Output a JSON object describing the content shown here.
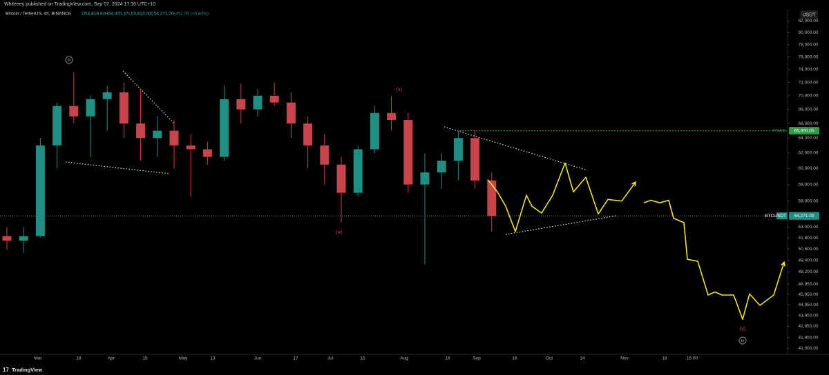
{
  "publisher_line": "Whiteeey published on TradingView.com, Sep 07, 2024 17:16 UTC+10",
  "footer_brand": "TradingView",
  "chart_data": {
    "type": "candlestick",
    "symbol": "Bitcoin / TetherUS, 4h, BINANCE",
    "ohlc_readout": [
      "O53,818.92",
      "H54,405.37",
      "L53,814.00",
      "C54,271.00",
      "+452.09 (+0.84%)"
    ],
    "currency": "USDT",
    "log_scale": true,
    "grid": false,
    "up_color": "#1f8f84",
    "down_color": "#c8434a",
    "open": [
      52000,
      51500,
      52000,
      63000,
      68500,
      67000,
      69500,
      70500,
      66000,
      64000,
      65000,
      63000,
      62500,
      61500,
      69500,
      68000,
      70000,
      69000,
      66000,
      63000,
      60500,
      57000,
      62500,
      67500,
      66500,
      58000,
      59500,
      61000,
      64000,
      58500
    ],
    "high": [
      53000,
      53000,
      64000,
      69000,
      73600,
      70000,
      71500,
      72000,
      71000,
      67000,
      66500,
      64500,
      63500,
      71500,
      71800,
      71000,
      72000,
      70500,
      67000,
      64500,
      61500,
      63000,
      68500,
      70000,
      67500,
      62000,
      62000,
      65000,
      65000,
      59500
    ],
    "low": [
      50500,
      50200,
      51800,
      60000,
      66000,
      61500,
      65000,
      64000,
      61000,
      61500,
      60000,
      56500,
      60500,
      61000,
      66000,
      67000,
      68500,
      64000,
      60000,
      58000,
      53500,
      56500,
      62000,
      65000,
      57000,
      49000,
      57500,
      58500,
      57500,
      52500
    ],
    "close": [
      51500,
      52000,
      63000,
      68500,
      67000,
      69500,
      70500,
      66000,
      64000,
      65000,
      63000,
      62500,
      61500,
      69500,
      68000,
      70000,
      69000,
      66000,
      63000,
      60500,
      57000,
      62500,
      67500,
      66500,
      58000,
      59500,
      61000,
      64000,
      58500,
      54271
    ],
    "projection": {
      "color": "#f2e33c",
      "values": [
        58600,
        57100,
        55400,
        52500,
        56700,
        55400,
        54600,
        56700,
        60700,
        57100,
        58900,
        54500,
        56200,
        56000,
        58300,
        null,
        55800,
        56100,
        55800,
        56100,
        54000,
        53500,
        49500,
        49300,
        45900,
        46200,
        45900,
        45900,
        45900,
        43600,
        46000,
        44900,
        45900,
        49200
      ]
    },
    "ylim": [
      40600,
      84000
    ],
    "yticks": [
      {
        "value": 82000,
        "label": "82,000.00"
      },
      {
        "value": 80000,
        "label": "80,000.00"
      },
      {
        "value": 78000,
        "label": "78,000.00"
      },
      {
        "value": 76000,
        "label": "76,000.00"
      },
      {
        "value": 74000,
        "label": "74,000.00"
      },
      {
        "value": 72000,
        "label": "72,000.00"
      },
      {
        "value": 70000,
        "label": "70,000.00"
      },
      {
        "value": 68000,
        "label": "68,000.00"
      },
      {
        "value": 66000,
        "label": "66,000.00"
      },
      {
        "value": 64000,
        "label": "64,000.00"
      },
      {
        "value": 62000,
        "label": "62,000.00"
      },
      {
        "value": 60000,
        "label": "60,000.00"
      },
      {
        "value": 58000,
        "label": "58,000.00"
      },
      {
        "value": 56000,
        "label": "56,000.00"
      },
      {
        "value": 53000,
        "label": "53,000.00"
      },
      {
        "value": 51800,
        "label": "51,800.00"
      },
      {
        "value": 50600,
        "label": "50,600.00"
      },
      {
        "value": 49400,
        "label": "49,400.00"
      },
      {
        "value": 48200,
        "label": "48,200.00"
      },
      {
        "value": 46950,
        "label": "46,950.00"
      },
      {
        "value": 45950,
        "label": "45,950.00"
      },
      {
        "value": 44950,
        "label": "44,950.00"
      },
      {
        "value": 43950,
        "label": "43,950.00"
      },
      {
        "value": 42950,
        "label": "42,950.00"
      },
      {
        "value": 41950,
        "label": "41,950.00"
      },
      {
        "value": 41000,
        "label": "41,000.00"
      }
    ],
    "xtick_labels": [
      "Mar",
      "18",
      "Apr",
      "15",
      "May",
      "13",
      "Jun",
      "17",
      "Jul",
      "15",
      "Aug",
      "19",
      "Sep",
      "16",
      "Oct",
      "14",
      "Nov",
      "18",
      "15:00"
    ],
    "level_line": {
      "name": "FSWB",
      "value": 65000,
      "label": "65,000.00",
      "color": "#2e9d4a"
    },
    "last_price": {
      "name": "BTCUSDT",
      "value": 54271,
      "label": "54,271.00",
      "color": "#1f8f84"
    },
    "wave_labels": [
      "iii",
      "(x)",
      "(w)",
      "(y)",
      "iv"
    ]
  }
}
